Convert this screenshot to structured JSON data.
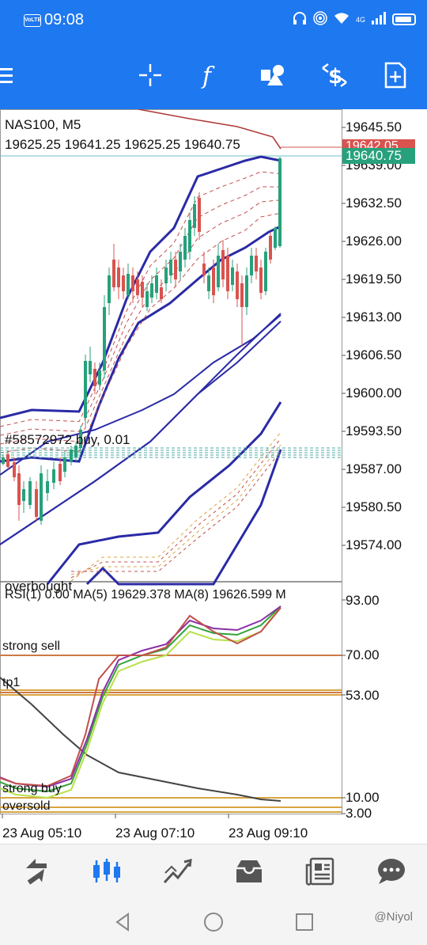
{
  "status_bar": {
    "time": "09:08",
    "volte": "VoLTE",
    "network": "4G"
  },
  "toolbar": {
    "items": [
      "menu-icon",
      "crosshair-icon",
      "indicators-icon",
      "objects-icon",
      "trade-icon",
      "new-order-icon"
    ]
  },
  "chart": {
    "symbol_line": "NAS100, M5",
    "ohlc_line": "19625.25 19641.25 19625.25 19640.75",
    "current_price": "19640.75",
    "ask_price": "19642.05",
    "order_label": "#58572972 buy, 0.01",
    "price_axis": [
      "19645.50",
      "19639.00",
      "19632.50",
      "19626.00",
      "19619.50",
      "19613.00",
      "19606.50",
      "19600.00",
      "19593.50",
      "19587.00",
      "19580.50",
      "19574.00"
    ],
    "overbought_label": "overbought",
    "indicator_line": "RSI(1) 0.00 MA(5) 19629.378 MA(8) 19626.599 M",
    "rsi_axis": [
      "93.00",
      "70.00",
      "53.00",
      "10.00",
      "3.00"
    ],
    "rsi_labels": {
      "strong_sell": "strong sell",
      "tp1": "tp1",
      "strong_buy": "strong buy",
      "oversold": "oversold"
    },
    "time_axis": [
      "23 Aug 05:10",
      "23 Aug 07:10",
      "23 Aug 09:10"
    ],
    "colors": {
      "bull": "#26a17b",
      "bear": "#d9534f",
      "band": "#2a2aa6",
      "accent": "#1e78f0"
    }
  },
  "bottom_nav": {
    "items": [
      "quotes-icon",
      "chart-icon",
      "trade-icon",
      "mailbox-icon",
      "news-icon",
      "chat-icon"
    ],
    "active": "chart-icon"
  },
  "watermark": "@Niyol"
}
